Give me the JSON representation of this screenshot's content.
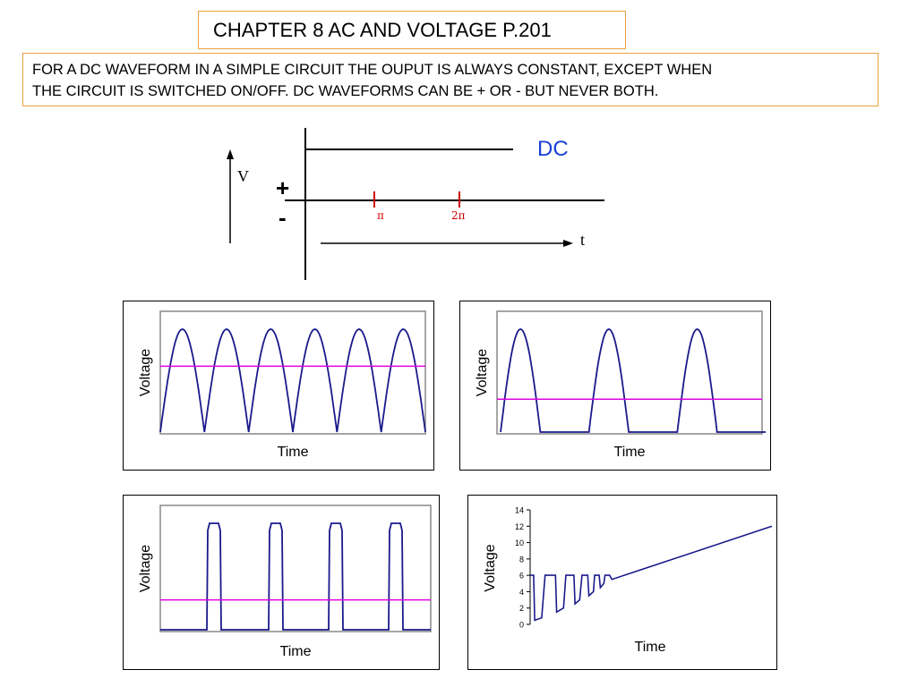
{
  "title": "CHAPTER 8 AC AND VOLTAGE P.201",
  "description": {
    "line1": "FOR A DC WAVEFORM IN A SIMPLE CIRCUIT THE OUPUT IS ALWAYS CONSTANT, EXCEPT WHEN",
    "line2": "THE CIRCUIT IS SWITCHED ON/OFF. DC WAVEFORMS CAN BE + OR - BUT NEVER BOTH."
  },
  "dc_diagram": {
    "v_label": "V",
    "plus_label": "+",
    "minus_label": "-",
    "dc_label": "DC",
    "pi_label": "π",
    "two_pi_label": "2π",
    "t_label": "t",
    "colors": {
      "dc": "#1a3fd6",
      "tick": "#cc0000"
    }
  },
  "colors": {
    "waveform": "#1a1a8c",
    "average": "#e000e0",
    "frame": "#888888"
  },
  "chart_data": [
    {
      "type": "line",
      "name": "full-wave rectified",
      "xlabel": "Time",
      "ylabel": "Voltage",
      "pulses": 6,
      "waveform_peak": 1.0,
      "average_level": 0.64
    },
    {
      "type": "line",
      "name": "half-wave rectified",
      "xlabel": "Time",
      "ylabel": "Voltage",
      "pulses": 3,
      "waveform_peak": 1.0,
      "average_level": 0.32
    },
    {
      "type": "line",
      "name": "square pulses",
      "xlabel": "Time",
      "ylabel": "Voltage",
      "pulses": 4,
      "waveform_peak": 1.0,
      "average_level": 0.13
    },
    {
      "type": "line",
      "name": "ramp",
      "xlabel": "Time",
      "ylabel": "Voltage",
      "yticks": [
        "0",
        "2",
        "4",
        "6",
        "8",
        "10",
        "12",
        "14"
      ],
      "ylim": [
        0,
        14
      ],
      "points": [
        [
          0,
          6
        ],
        [
          0.3,
          6
        ],
        [
          0.4,
          0.5
        ],
        [
          1.0,
          0.8
        ],
        [
          1.3,
          6
        ],
        [
          2.2,
          6
        ],
        [
          2.3,
          1.5
        ],
        [
          2.9,
          2.0
        ],
        [
          3.1,
          6
        ],
        [
          3.8,
          6
        ],
        [
          3.9,
          2.5
        ],
        [
          4.3,
          3.0
        ],
        [
          4.5,
          6
        ],
        [
          5.0,
          6
        ],
        [
          5.1,
          3.5
        ],
        [
          5.5,
          4.0
        ],
        [
          5.6,
          6
        ],
        [
          6.0,
          6
        ],
        [
          6.1,
          4.5
        ],
        [
          6.4,
          5.0
        ],
        [
          6.5,
          6
        ],
        [
          6.9,
          6
        ],
        [
          7.1,
          5.5
        ],
        [
          21,
          12
        ]
      ]
    }
  ]
}
